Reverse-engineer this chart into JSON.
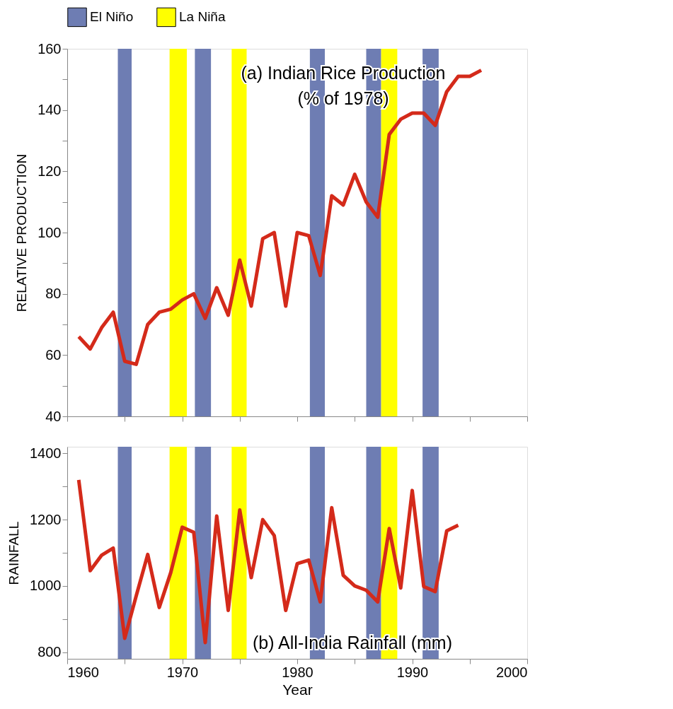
{
  "chart_data": [
    {
      "type": "line",
      "ylabel": "RELATIVE PRODUCTION",
      "annotations": [
        "(a) Indian Rice Production",
        "(% of 1978)"
      ],
      "x": [
        1961,
        1962,
        1963,
        1964,
        1965,
        1966,
        1967,
        1968,
        1969,
        1970,
        1971,
        1972,
        1973,
        1974,
        1975,
        1976,
        1977,
        1978,
        1979,
        1980,
        1981,
        1982,
        1983,
        1984,
        1985,
        1986,
        1987,
        1988,
        1989,
        1990,
        1991,
        1992,
        1993,
        1994,
        1995,
        1996
      ],
      "series": [
        {
          "color": "#d42a1a",
          "values": [
            66,
            62,
            69,
            74,
            58,
            57,
            70,
            74,
            75,
            78,
            80,
            72,
            82,
            73,
            91,
            76,
            98,
            100,
            76,
            100,
            99,
            86,
            112,
            109,
            119,
            110,
            105,
            132,
            137,
            139,
            139,
            135,
            146,
            151,
            151,
            153
          ]
        }
      ],
      "xlim": [
        1960,
        2000
      ],
      "xticks": [
        1960,
        {
          "value": 1965,
          "label": null
        },
        1970,
        {
          "value": 1975,
          "label": null
        },
        1980,
        {
          "value": 1985,
          "label": null
        },
        1990,
        {
          "value": 1995,
          "label": null
        },
        2000
      ],
      "ylim": [
        40,
        160
      ],
      "yticks": [
        40,
        {
          "value": 50,
          "label": null
        },
        60,
        {
          "value": 70,
          "label": null
        },
        80,
        {
          "value": 90,
          "label": null
        },
        100,
        {
          "value": 110,
          "label": null
        },
        120,
        {
          "value": 130,
          "label": null
        },
        140,
        {
          "value": 150,
          "label": null
        },
        160
      ],
      "tick_labels": "y",
      "grid": false,
      "legend": "top",
      "marker": "none",
      "bands": [
        {
          "axis": "x",
          "from": 1964.4,
          "to": 1965.6,
          "label": "El Niño",
          "color": "#6e7db3"
        },
        {
          "axis": "x",
          "from": 1968.9,
          "to": 1970.4,
          "label": "La Niña",
          "color": "#ffff00"
        },
        {
          "axis": "x",
          "from": 1971.1,
          "to": 1972.5,
          "color": "#6e7db3"
        },
        {
          "axis": "x",
          "from": 1974.3,
          "to": 1975.6,
          "color": "#ffff00"
        },
        {
          "axis": "x",
          "from": 1981.1,
          "to": 1982.4,
          "color": "#6e7db3"
        },
        {
          "axis": "x",
          "from": 1986.0,
          "to": 1987.3,
          "color": "#6e7db3"
        },
        {
          "axis": "x",
          "from": 1987.3,
          "to": 1988.7,
          "color": "#ffff00"
        },
        {
          "axis": "x",
          "from": 1990.9,
          "to": 1992.3,
          "color": "#6e7db3"
        }
      ]
    },
    {
      "type": "line",
      "xlabel": "Year",
      "ylabel": "RAINFALL",
      "annotations": [
        "(b) All-India Rainfall (mm)"
      ],
      "x": [
        1961,
        1962,
        1963,
        1964,
        1965,
        1966,
        1967,
        1968,
        1969,
        1970,
        1971,
        1972,
        1973,
        1974,
        1975,
        1976,
        1977,
        1978,
        1979,
        1980,
        1981,
        1982,
        1983,
        1984,
        1985,
        1986,
        1987,
        1988,
        1989,
        1990,
        1991,
        1992,
        1993,
        1994
      ],
      "series": [
        {
          "color": "#d42a1a",
          "values": [
            1320,
            1046,
            1093,
            1114,
            842,
            970,
            1095,
            935,
            1040,
            1177,
            1162,
            829,
            1211,
            926,
            1229,
            1025,
            1200,
            1152,
            926,
            1067,
            1078,
            952,
            1236,
            1032,
            1000,
            987,
            952,
            1173,
            994,
            1288,
            998,
            983,
            1166,
            1183
          ]
        }
      ],
      "xlim": [
        1960,
        2000
      ],
      "xticks": [
        1960,
        {
          "value": 1965,
          "label": null
        },
        1970,
        {
          "value": 1975,
          "label": null
        },
        1980,
        {
          "value": 1985,
          "label": null
        },
        1990,
        {
          "value": 1995,
          "label": null
        },
        2000
      ],
      "ylim": [
        780,
        1420
      ],
      "yticks": [
        800,
        {
          "value": 900,
          "label": null
        },
        1000,
        {
          "value": 1100,
          "label": null
        },
        1200,
        {
          "value": 1300,
          "label": null
        },
        1400
      ],
      "grid": false,
      "marker": "none",
      "bands": [
        {
          "axis": "x",
          "from": 1964.4,
          "to": 1965.6,
          "color": "#6e7db3"
        },
        {
          "axis": "x",
          "from": 1968.9,
          "to": 1970.4,
          "color": "#ffff00"
        },
        {
          "axis": "x",
          "from": 1971.1,
          "to": 1972.5,
          "color": "#6e7db3"
        },
        {
          "axis": "x",
          "from": 1974.3,
          "to": 1975.6,
          "color": "#ffff00"
        },
        {
          "axis": "x",
          "from": 1981.1,
          "to": 1982.4,
          "color": "#6e7db3"
        },
        {
          "axis": "x",
          "from": 1986.0,
          "to": 1987.3,
          "color": "#6e7db3"
        },
        {
          "axis": "x",
          "from": 1987.3,
          "to": 1988.7,
          "color": "#ffff00"
        },
        {
          "axis": "x",
          "from": 1990.9,
          "to": 1992.3,
          "color": "#6e7db3"
        }
      ]
    }
  ]
}
